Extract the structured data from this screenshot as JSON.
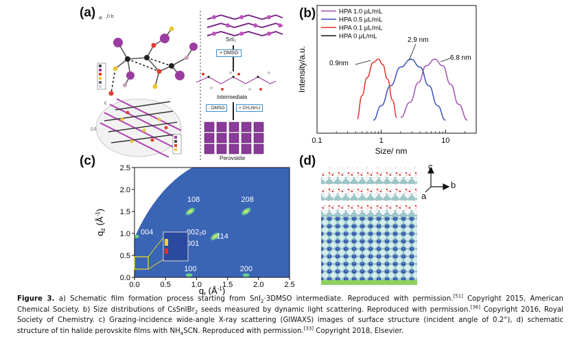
{
  "panels": {
    "a": {
      "label": "(a)",
      "axes_text": "a",
      "legend_items": [
        "Sn",
        "I",
        "O",
        "S",
        "C",
        "H"
      ],
      "sni2_label": "SnI₂",
      "step1": "+ DMSO",
      "intermediate_label": "Intermediate",
      "step2a": "- DMSO",
      "step2b": "+ CH₃NH₃I",
      "perovskite_label": "Perovskite"
    },
    "b": {
      "label": "(b)",
      "peak_labels": [
        "0.9nm",
        "2.9 nm",
        "6.8 nm"
      ]
    },
    "c": {
      "label": "(c)",
      "spot_labels": [
        "108",
        "208",
        "004",
        "002₂ᴅ",
        "001",
        "114",
        "100",
        "200"
      ]
    },
    "d": {
      "label": "(d)",
      "axis_c": "c",
      "axis_a": "a",
      "axis_b": "b"
    }
  },
  "colors": {
    "gisaxs_bg": "#3a64b4",
    "hpa10": "#a04fb0",
    "hpa05": "#3a4fb8",
    "hpa01": "#e0302a",
    "hpa0": "#111111",
    "substrate": "#8ed060"
  },
  "chart_data": [
    {
      "type": "line",
      "xlabel": "Size/ nm",
      "ylabel": "Intensity/a.u.",
      "x_scale": "log",
      "xlim": [
        0.1,
        30
      ],
      "x_ticks": [
        "0.1",
        "1",
        "10"
      ],
      "series": [
        {
          "name": "HPA 1.0 µL/mL",
          "x": [
            2.0,
            2.8,
            3.8,
            5.0,
            6.8,
            9.0,
            12.0,
            16.0,
            22.0
          ],
          "y": [
            0.12,
            0.35,
            0.65,
            0.9,
            1.0,
            0.9,
            0.62,
            0.32,
            0.08
          ]
        },
        {
          "name": "HPA 0.5 µL/mL",
          "x": [
            0.75,
            1.0,
            1.4,
            2.0,
            2.9,
            4.0,
            5.5,
            7.5,
            10.0
          ],
          "y": [
            0.08,
            0.3,
            0.6,
            0.88,
            1.0,
            0.88,
            0.6,
            0.3,
            0.08
          ]
        },
        {
          "name": "HPA 0.1 µL/mL",
          "x": [
            0.42,
            0.5,
            0.6,
            0.75,
            0.9,
            1.05,
            1.25,
            1.5,
            1.75
          ],
          "y": [
            0.1,
            0.45,
            0.72,
            0.95,
            1.0,
            0.92,
            0.7,
            0.38,
            0.12
          ]
        },
        {
          "name": "HPA 0   µL/mL",
          "x": [],
          "y": []
        }
      ]
    },
    {
      "type": "heatmap",
      "xlabel": "q_r (Å⁻¹)",
      "ylabel": "q_z (Å⁻¹)",
      "xlim": [
        0,
        2.5
      ],
      "ylim": [
        0,
        2.5
      ],
      "x_ticks": [
        "0.0",
        "0.5",
        "1.0",
        "1.5",
        "2.0",
        "2.5"
      ],
      "y_ticks": [
        "0.0",
        "0.5",
        "1.0",
        "1.5",
        "2.0",
        "2.5"
      ],
      "spots": [
        {
          "label": "108",
          "qr": 0.9,
          "qz": 1.5
        },
        {
          "label": "208",
          "qr": 1.8,
          "qz": 1.5
        },
        {
          "label": "004",
          "qr": 0.02,
          "qz": 0.93
        },
        {
          "label": "114",
          "qr": 1.3,
          "qz": 0.93
        },
        {
          "label": "100",
          "qr": 0.88,
          "qz": 0.05
        },
        {
          "label": "200",
          "qr": 1.8,
          "qz": 0.05
        }
      ]
    }
  ],
  "caption": {
    "fig": "Figure 3.",
    "t1": " a) Schematic film formation process starting from SnI",
    "s1": "2",
    "t2": "·3DMSO intermediate. Reproduced with permission.",
    "r1": "[51]",
    "t3": " Copyright 2015, American Chemical Society. b) Size distributions of CsSnIBr",
    "s2": "2",
    "t4": " seeds measured by dynamic light scattering. Reproduced with permission.",
    "r2": "[36]",
    "t5": " Copyright 2016, Royal Society of Chemistry. c) Grazing-incidence wide-angle X-ray scattering (GIWAXS) images of surface structure (incident angle of 0.2°), d) schematic structure of tin halide perovskite films with NH",
    "s3": "4",
    "t6": "SCN. Reproduced with permission.",
    "r3": "[33]",
    "t7": " Copyright 2018, Elsevier."
  }
}
